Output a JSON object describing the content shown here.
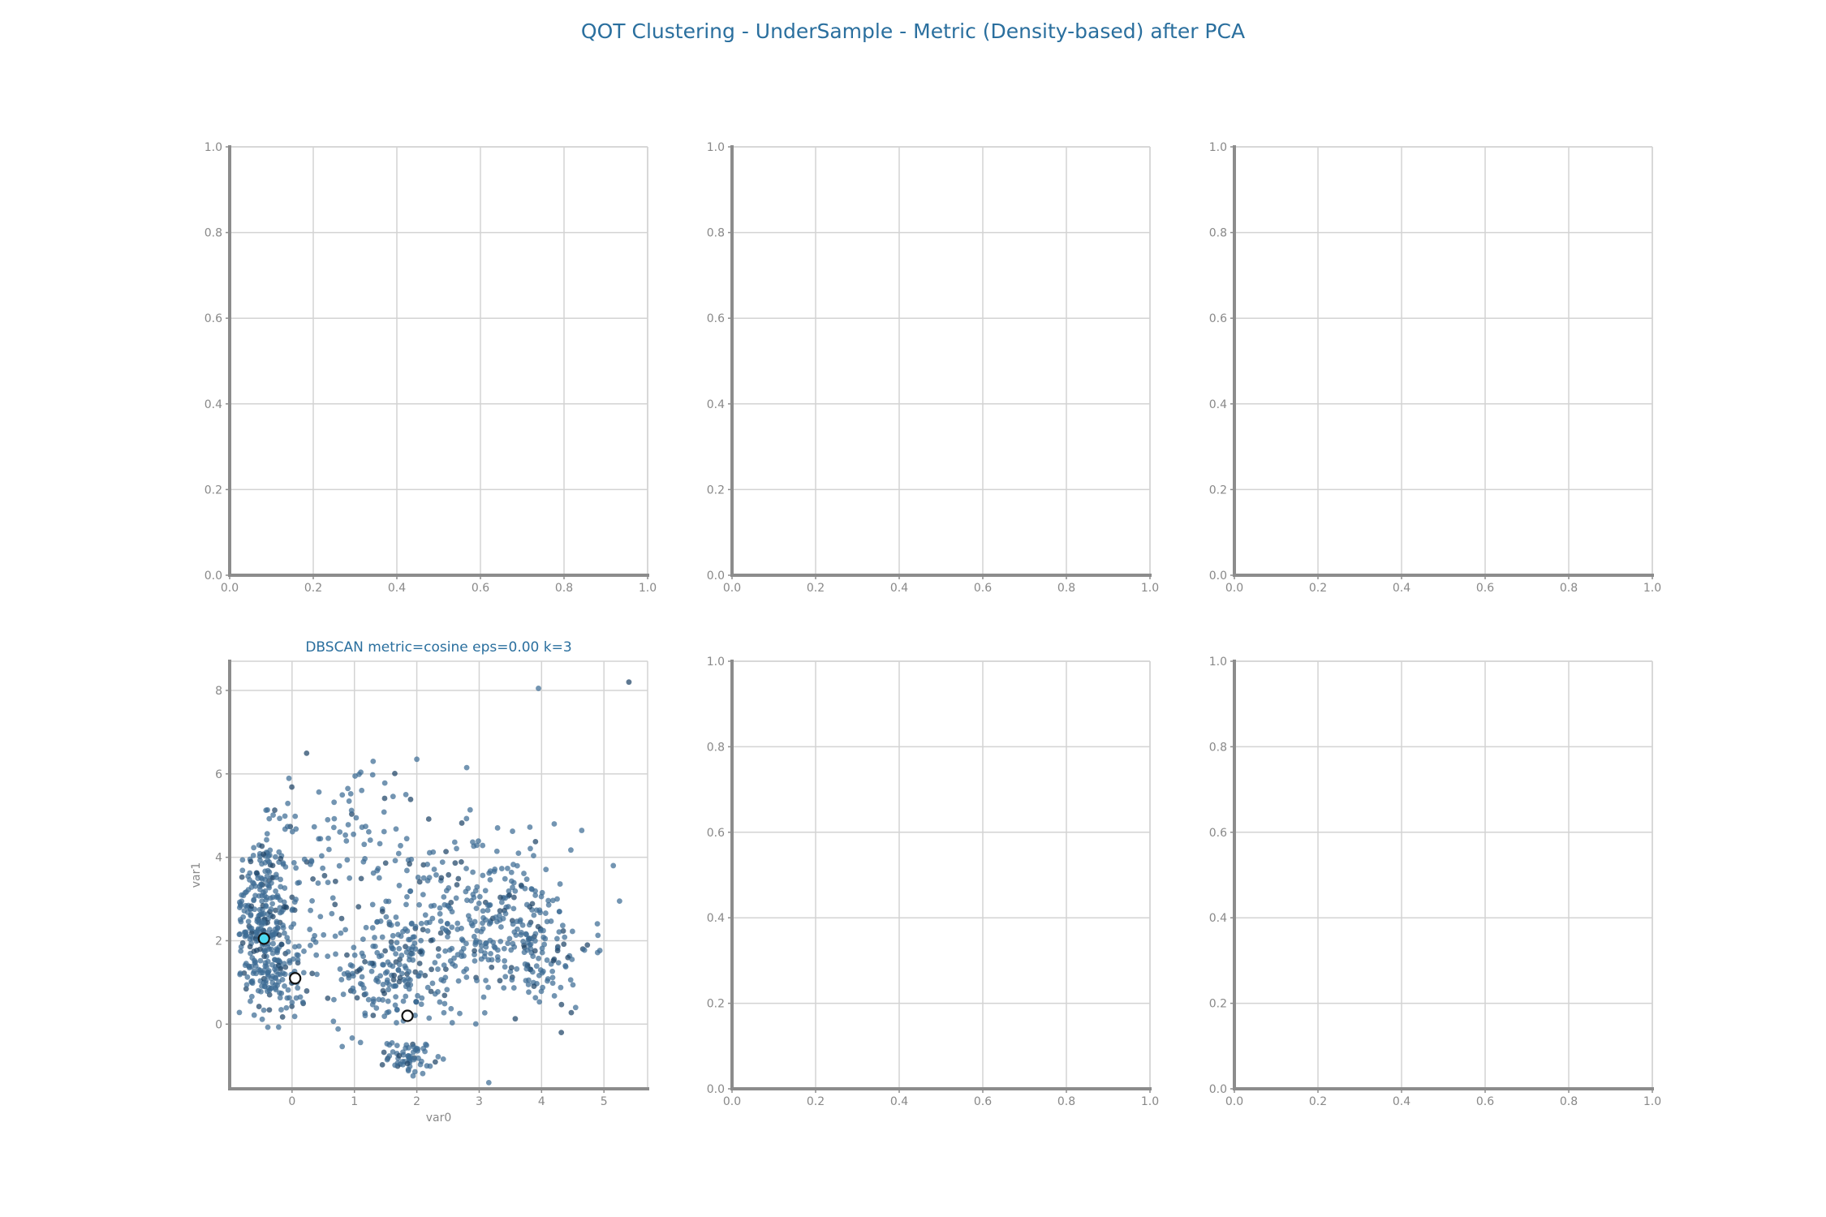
{
  "figure_title": "QOT Clustering - UnderSample - Metric (Density-based) after PCA",
  "colors": {
    "title": "#2a6f9e",
    "point": "#3d6c94",
    "point_dark": "#1f4466",
    "centroid_highlight": "#4dd9f0",
    "grid": "#d3d3d3",
    "axis": "#8c8c8c",
    "tick_text": "#888888"
  },
  "chart_data": [
    {
      "panel": "row1-col1",
      "type": "scatter",
      "title": "",
      "xlabel": "",
      "ylabel": "",
      "xlim": [
        0,
        1
      ],
      "ylim": [
        0,
        1
      ],
      "xticks": [
        "0.0",
        "0.2",
        "0.4",
        "0.6",
        "0.8",
        "1.0"
      ],
      "yticks": [
        "0.0",
        "0.2",
        "0.4",
        "0.6",
        "0.8",
        "1.0"
      ],
      "grid": true,
      "points": []
    },
    {
      "panel": "row1-col2",
      "type": "scatter",
      "title": "",
      "xlabel": "",
      "ylabel": "",
      "xlim": [
        0,
        1
      ],
      "ylim": [
        0,
        1
      ],
      "xticks": [
        "0.0",
        "0.2",
        "0.4",
        "0.6",
        "0.8",
        "1.0"
      ],
      "yticks": [
        "0.0",
        "0.2",
        "0.4",
        "0.6",
        "0.8",
        "1.0"
      ],
      "grid": true,
      "points": []
    },
    {
      "panel": "row1-col3",
      "type": "scatter",
      "title": "",
      "xlabel": "",
      "ylabel": "",
      "xlim": [
        0,
        1
      ],
      "ylim": [
        0,
        1
      ],
      "xticks": [
        "0.0",
        "0.2",
        "0.4",
        "0.6",
        "0.8",
        "1.0"
      ],
      "yticks": [
        "0.0",
        "0.2",
        "0.4",
        "0.6",
        "0.8",
        "1.0"
      ],
      "grid": true,
      "points": []
    },
    {
      "panel": "row2-col1",
      "type": "scatter",
      "title": "DBSCAN metric=cosine eps=0.00 k=3",
      "xlabel": "var0",
      "ylabel": "var1",
      "xlim": [
        -1.0,
        5.7
      ],
      "ylim": [
        -1.55,
        8.7
      ],
      "xticks": [
        "0",
        "1",
        "2",
        "3",
        "4",
        "5"
      ],
      "yticks": [
        "0",
        "2",
        "4",
        "6",
        "8"
      ],
      "grid": true,
      "groups": [
        {
          "cx": -0.5,
          "cy": 2.6,
          "sx": 0.22,
          "sy": 1.0,
          "n": 260
        },
        {
          "cx": -0.2,
          "cy": 1.2,
          "sx": 0.25,
          "sy": 0.55,
          "n": 110
        },
        {
          "cx": 0.3,
          "cy": 3.2,
          "sx": 0.55,
          "sy": 1.3,
          "n": 90
        },
        {
          "cx": 1.6,
          "cy": 1.2,
          "sx": 0.45,
          "sy": 0.6,
          "n": 150
        },
        {
          "cx": 1.9,
          "cy": -0.8,
          "sx": 0.18,
          "sy": 0.2,
          "n": 60
        },
        {
          "cx": 2.2,
          "cy": 2.2,
          "sx": 0.7,
          "sy": 1.2,
          "n": 170
        },
        {
          "cx": 3.9,
          "cy": 1.9,
          "sx": 0.45,
          "sy": 0.8,
          "n": 150
        },
        {
          "cx": 3.2,
          "cy": 2.5,
          "sx": 0.5,
          "sy": 0.9,
          "n": 90
        },
        {
          "cx": 1.0,
          "cy": 4.5,
          "sx": 0.9,
          "sy": 0.9,
          "n": 45
        },
        {
          "cx": 3.5,
          "cy": 4.0,
          "sx": 0.6,
          "sy": 0.6,
          "n": 25
        }
      ],
      "outliers": [
        [
          3.95,
          8.05
        ],
        [
          5.4,
          8.2
        ],
        [
          2.0,
          6.35
        ],
        [
          1.3,
          6.3
        ],
        [
          2.8,
          6.15
        ],
        [
          5.25,
          2.95
        ],
        [
          5.15,
          3.8
        ]
      ],
      "centroids": [
        {
          "x": -0.45,
          "y": 2.05,
          "highlight": true
        },
        {
          "x": 0.05,
          "y": 1.1,
          "highlight": false
        },
        {
          "x": 1.85,
          "y": 0.2,
          "highlight": false
        }
      ]
    },
    {
      "panel": "row2-col2",
      "type": "scatter",
      "title": "",
      "xlabel": "",
      "ylabel": "",
      "xlim": [
        0,
        1
      ],
      "ylim": [
        0,
        1
      ],
      "xticks": [
        "0.0",
        "0.2",
        "0.4",
        "0.6",
        "0.8",
        "1.0"
      ],
      "yticks": [
        "0.0",
        "0.2",
        "0.4",
        "0.6",
        "0.8",
        "1.0"
      ],
      "grid": true,
      "points": []
    },
    {
      "panel": "row2-col3",
      "type": "scatter",
      "title": "",
      "xlabel": "",
      "ylabel": "",
      "xlim": [
        0,
        1
      ],
      "ylim": [
        0,
        1
      ],
      "xticks": [
        "0.0",
        "0.2",
        "0.4",
        "0.6",
        "0.8",
        "1.0"
      ],
      "yticks": [
        "0.0",
        "0.2",
        "0.4",
        "0.6",
        "0.8",
        "1.0"
      ],
      "grid": true,
      "points": []
    }
  ]
}
